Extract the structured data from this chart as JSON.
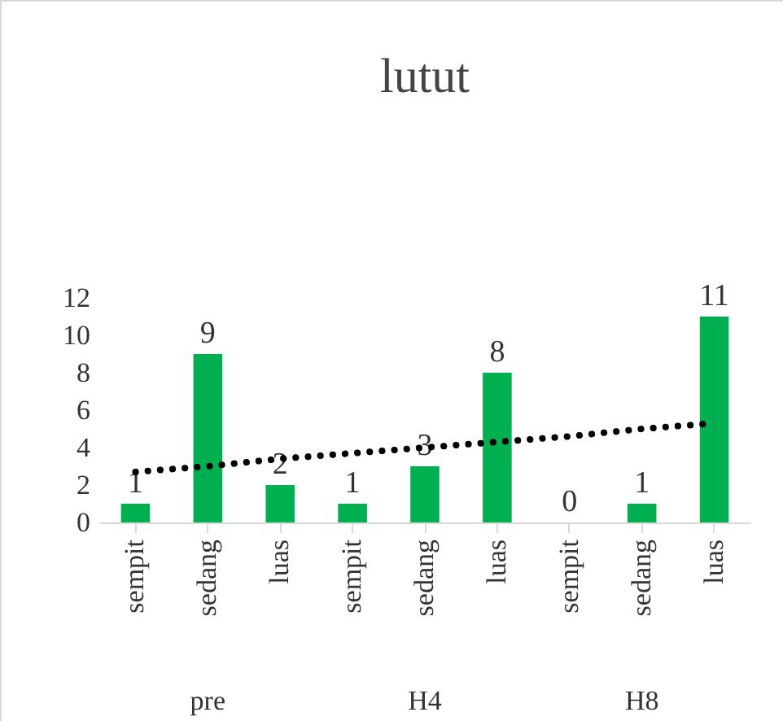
{
  "chart_data": {
    "type": "bar",
    "title": "lutut",
    "categories": [
      "sempit",
      "sedang",
      "luas",
      "sempit",
      "sedang",
      "luas",
      "sempit",
      "sedang",
      "luas"
    ],
    "series": [
      {
        "color": "#00b050",
        "values": [
          1,
          9,
          2,
          1,
          3,
          8,
          0,
          1,
          11
        ],
        "value_labels": [
          "1",
          "9",
          "2",
          "1",
          "3",
          "8",
          "0",
          "1",
          "11"
        ]
      },
      {
        "type": "line",
        "color": "#000000",
        "line_style": "dotted",
        "marker": "none",
        "values": [
          2.7,
          3.0,
          3.4,
          3.7,
          4.0,
          4.3,
          4.6,
          5.0,
          5.3
        ]
      }
    ],
    "annotations": [
      "pre",
      "H4",
      "H8"
    ],
    "ylim": [
      0,
      12
    ],
    "yticks": [
      0,
      2,
      4,
      6,
      8,
      10,
      12
    ],
    "grid": false
  }
}
